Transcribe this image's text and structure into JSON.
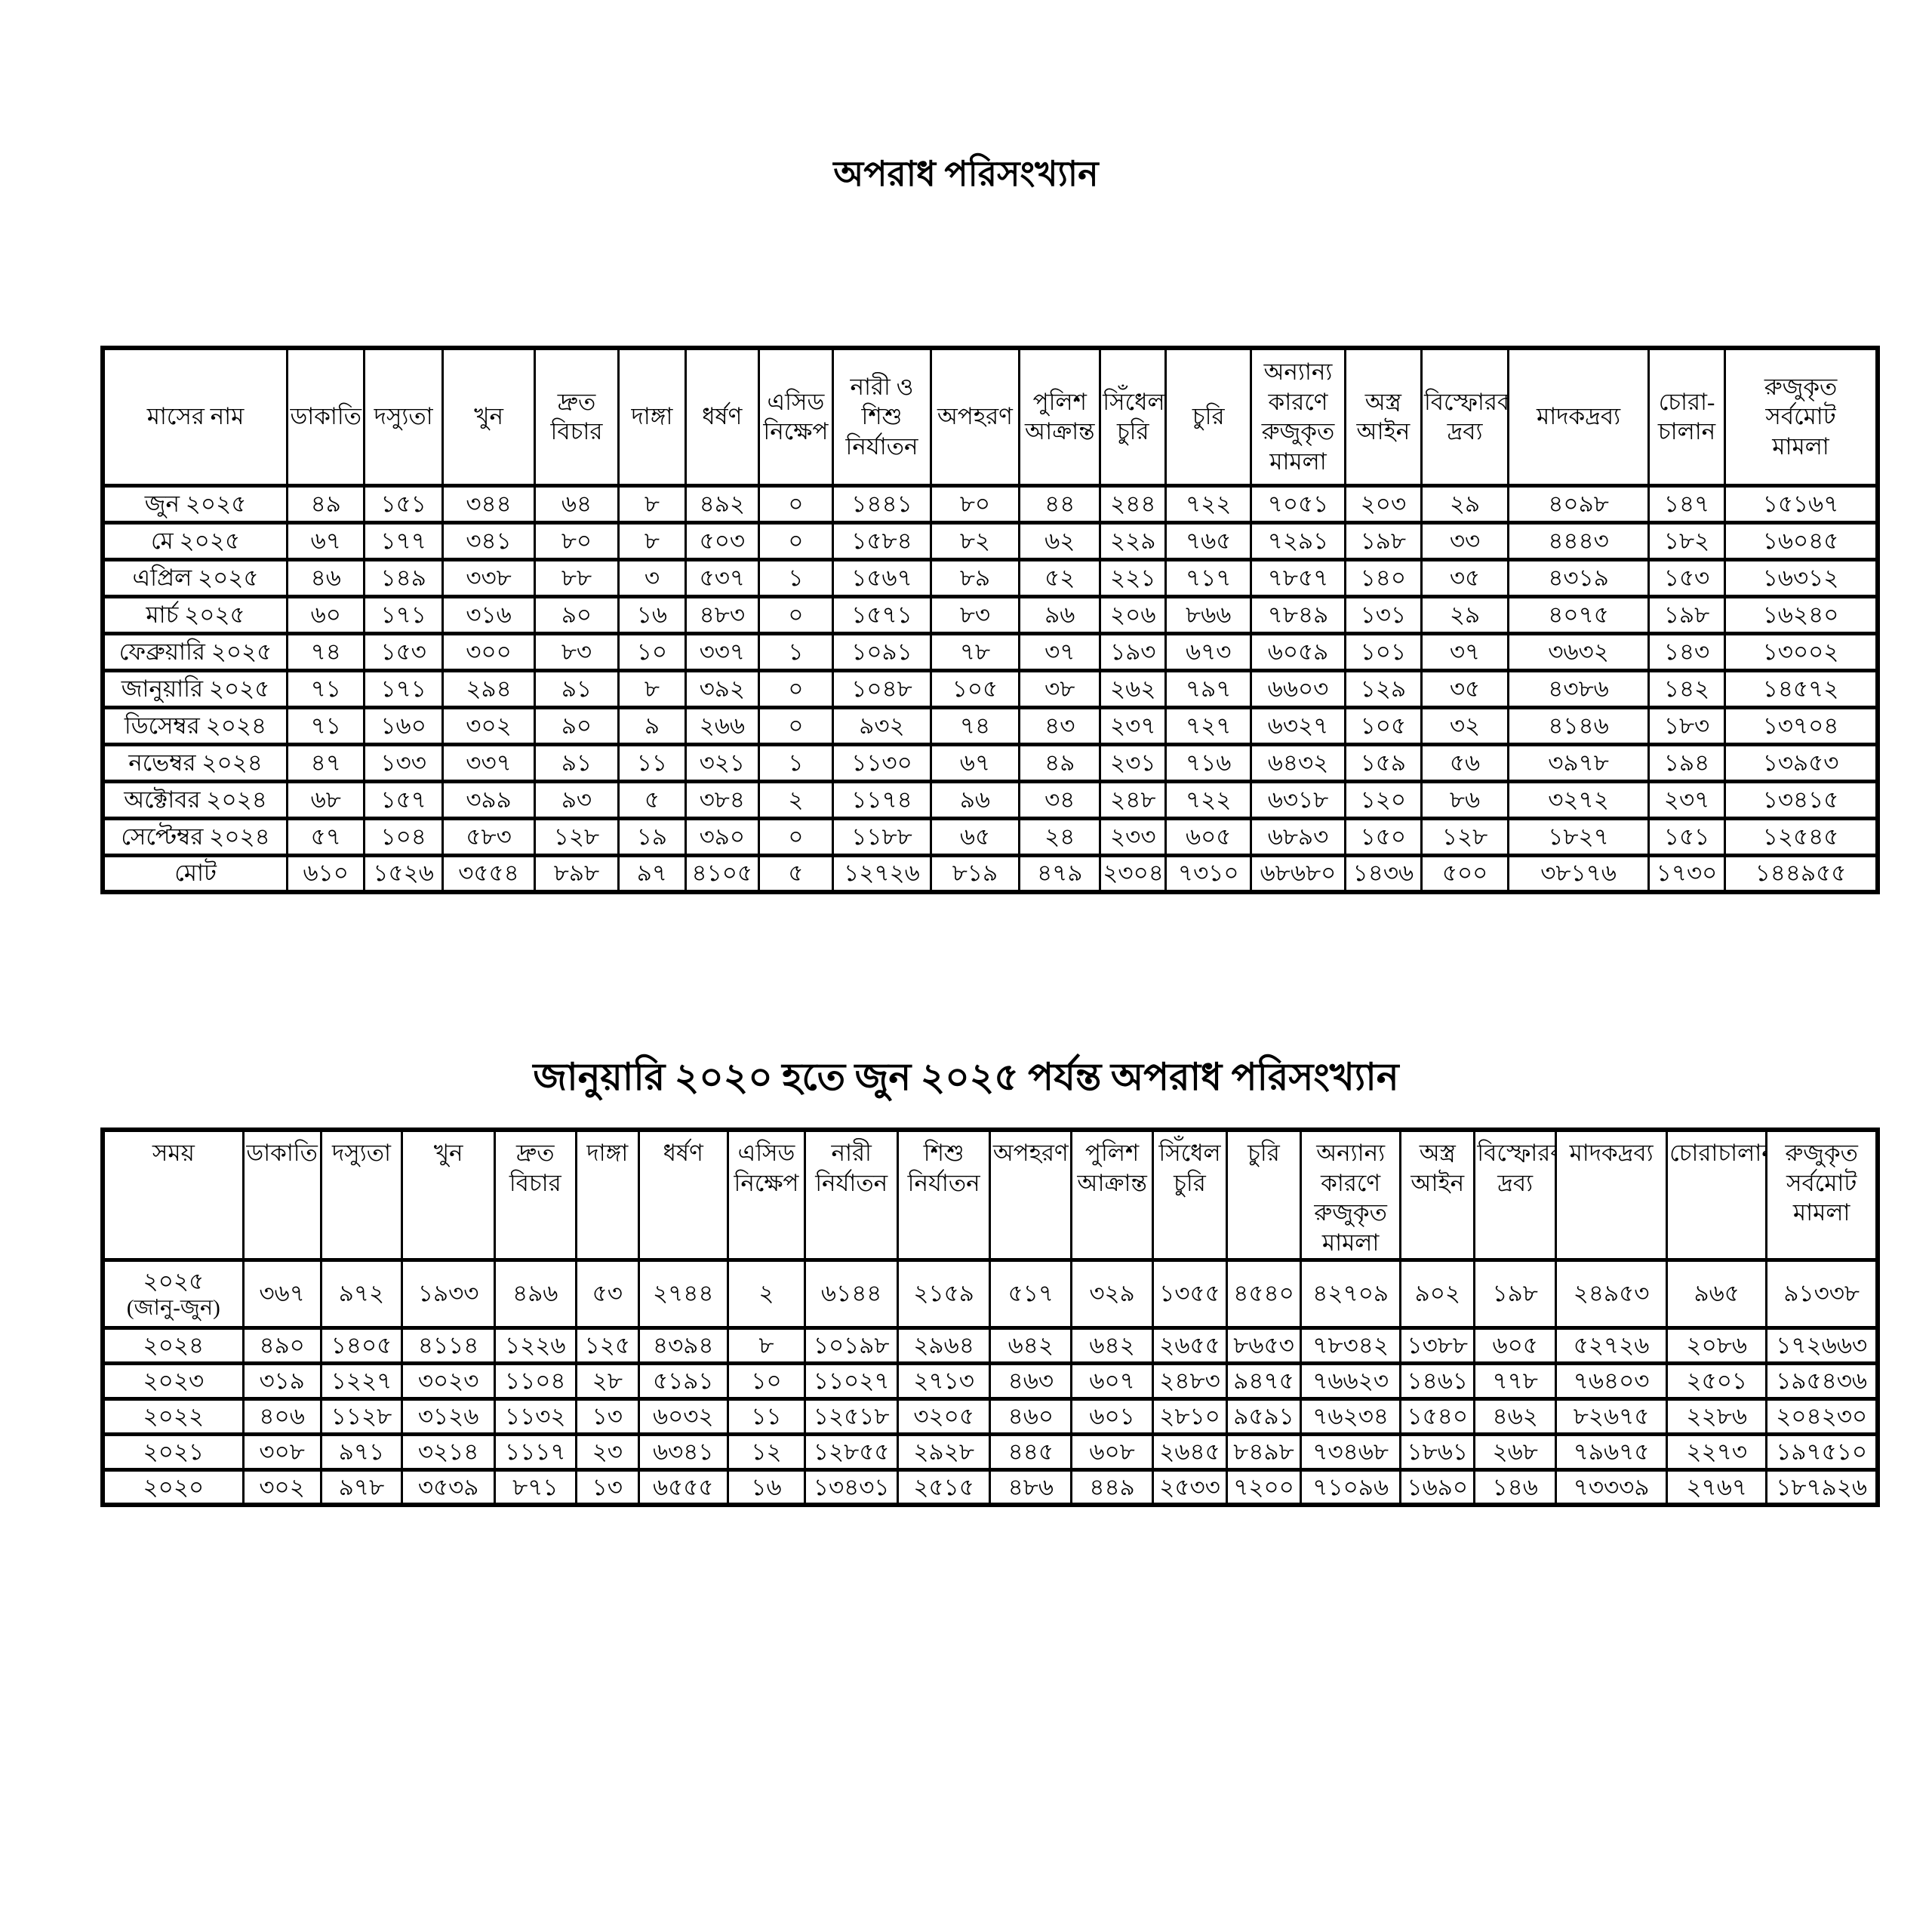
{
  "page": {
    "title_monthly": "অপরাধ পরিসংখ্যান",
    "title_yearly": "জানুয়ারি ২০২০ হতে জুন ২০২৫ পর্যন্ত অপরাধ পরিসংখ্যান"
  },
  "monthly_table": {
    "headers": [
      "মাসের নাম",
      "ডাকাতি",
      "দস্যুতা",
      "খুন",
      "দ্রুত\nবিচার",
      "দাঙ্গা",
      "ধর্ষণ",
      "এসিড\nনিক্ষেপ",
      "নারী ও\nশিশু\nনির্যাতন",
      "অপহরণ",
      "পুলিশ\nআক্রান্ত",
      "সিঁধেল\nচুরি",
      "চুরি",
      "অন্যান্য\nকারণে\nরুজুকৃত\nমামলা",
      "অস্ত্র\nআইন",
      "বিস্ফোরক\nদ্রব্য",
      "মাদকদ্রব্য",
      "চোরা-\nচালান",
      "রুজুকৃত\nসর্বমোট\nমামলা"
    ],
    "col_widths": [
      10.4,
      4.35,
      4.4,
      5.2,
      4.7,
      3.8,
      4.1,
      4.2,
      5.5,
      5.0,
      4.55,
      3.7,
      4.8,
      5.3,
      4.3,
      4.9,
      7.9,
      4.3,
      8.6
    ],
    "rows": [
      {
        "label": "জুন ২০২৫",
        "values": [
          "৪৯",
          "১৫১",
          "৩৪৪",
          "৬৪",
          "৮",
          "৪৯২",
          "০",
          "১৪৪১",
          "৮০",
          "৪৪",
          "২৪৪",
          "৭২২",
          "৭০৫১",
          "২০৩",
          "২৯",
          "৪০৯৮",
          "১৪৭",
          "১৫১৬৭"
        ]
      },
      {
        "label": "মে ২০২৫",
        "values": [
          "৬৭",
          "১৭৭",
          "৩৪১",
          "৮০",
          "৮",
          "৫০৩",
          "০",
          "১৫৮৪",
          "৮২",
          "৬২",
          "২২৯",
          "৭৬৫",
          "৭২৯১",
          "১৯৮",
          "৩৩",
          "৪৪৪৩",
          "১৮২",
          "১৬০৪৫"
        ]
      },
      {
        "label": "এপ্রিল ২০২৫",
        "values": [
          "৪৬",
          "১৪৯",
          "৩৩৮",
          "৮৮",
          "৩",
          "৫৩৭",
          "১",
          "১৫৬৭",
          "৮৯",
          "৫২",
          "২২১",
          "৭১৭",
          "৭৮৫৭",
          "১৪০",
          "৩৫",
          "৪৩১৯",
          "১৫৩",
          "১৬৩১২"
        ]
      },
      {
        "label": "মার্চ ২০২৫",
        "values": [
          "৬০",
          "১৭১",
          "৩১৬",
          "৯০",
          "১৬",
          "৪৮৩",
          "০",
          "১৫৭১",
          "৮৩",
          "৯৬",
          "২০৬",
          "৮৬৬",
          "৭৮৪৯",
          "১৩১",
          "২৯",
          "৪০৭৫",
          "১৯৮",
          "১৬২৪০"
        ]
      },
      {
        "label": "ফেব্রুয়ারি ২০২৫",
        "values": [
          "৭৪",
          "১৫৩",
          "৩০০",
          "৮৩",
          "১০",
          "৩৩৭",
          "১",
          "১০৯১",
          "৭৮",
          "৩৭",
          "১৯৩",
          "৬৭৩",
          "৬০৫৯",
          "১০১",
          "৩৭",
          "৩৬৩২",
          "১৪৩",
          "১৩০০২"
        ]
      },
      {
        "label": "জানুয়ারি ২০২৫",
        "values": [
          "৭১",
          "১৭১",
          "২৯৪",
          "৯১",
          "৮",
          "৩৯২",
          "০",
          "১০৪৮",
          "১০৫",
          "৩৮",
          "২৬২",
          "৭৯৭",
          "৬৬০৩",
          "১২৯",
          "৩৫",
          "৪৩৮৬",
          "১৪২",
          "১৪৫৭২"
        ]
      },
      {
        "label": "ডিসেম্বর ২০২৪",
        "values": [
          "৭১",
          "১৬০",
          "৩০২",
          "৯০",
          "৯",
          "২৬৬",
          "০",
          "৯৩২",
          "৭৪",
          "৪৩",
          "২৩৭",
          "৭২৭",
          "৬৩২৭",
          "১০৫",
          "৩২",
          "৪১৪৬",
          "১৮৩",
          "১৩৭০৪"
        ]
      },
      {
        "label": "নভেম্বর ২০২৪",
        "values": [
          "৪৭",
          "১৩৩",
          "৩৩৭",
          "৯১",
          "১১",
          "৩২১",
          "১",
          "১১৩০",
          "৬৭",
          "৪৯",
          "২৩১",
          "৭১৬",
          "৬৪৩২",
          "১৫৯",
          "৫৬",
          "৩৯৭৮",
          "১৯৪",
          "১৩৯৫৩"
        ]
      },
      {
        "label": "অক্টোবর ২০২৪",
        "values": [
          "৬৮",
          "১৫৭",
          "৩৯৯",
          "৯৩",
          "৫",
          "৩৮৪",
          "২",
          "১১৭৪",
          "৯৬",
          "৩৪",
          "২৪৮",
          "৭২২",
          "৬৩১৮",
          "১২০",
          "৮৬",
          "৩২৭২",
          "২৩৭",
          "১৩৪১৫"
        ]
      },
      {
        "label": "সেপ্টেম্বর ২০২৪",
        "values": [
          "৫৭",
          "১০৪",
          "৫৮৩",
          "১২৮",
          "১৯",
          "৩৯০",
          "০",
          "১১৮৮",
          "৬৫",
          "২৪",
          "২৩৩",
          "৬০৫",
          "৬৮৯৩",
          "১৫০",
          "১২৮",
          "১৮২৭",
          "১৫১",
          "১২৫৪৫"
        ]
      },
      {
        "label": "মোট",
        "values": [
          "৬১০",
          "১৫২৬",
          "৩৫৫৪",
          "৮৯৮",
          "৯৭",
          "৪১০৫",
          "৫",
          "১২৭২৬",
          "৮১৯",
          "৪৭৯",
          "২৩০৪",
          "৭৩১০",
          "৬৮৬৮০",
          "১৪৩৬",
          "৫০০",
          "৩৮১৭৬",
          "১৭৩০",
          "১৪৪৯৫৫"
        ]
      }
    ]
  },
  "yearly_table": {
    "headers": [
      "সময়",
      "ডাকাতি",
      "দস্যুতা",
      "খুন",
      "দ্রুত\nবিচার",
      "দাঙ্গা",
      "ধর্ষণ",
      "এসিড\nনিক্ষেপ",
      "নারী\nনির্যাতন",
      "শিশু\nনির্যাতন",
      "অপহরণ",
      "পুলিশ\nআক্রান্ত",
      "সিঁধেল\nচুরি",
      "চুরি",
      "অন্যান্য\nকারণে\nরুজুকৃত\nমামলা",
      "অস্ত্র\nআইন",
      "বিস্ফোরক\nদ্রব্য",
      "মাদকদ্রব্য",
      "চোরাচালান",
      "রুজুকৃত\nসর্বমোট\nমামলা"
    ],
    "col_widths": [
      7.6,
      4.2,
      4.4,
      5.0,
      4.4,
      3.4,
      4.8,
      4.2,
      5.0,
      5.0,
      4.4,
      4.4,
      4.0,
      4.0,
      5.4,
      4.0,
      4.4,
      6.0,
      5.4,
      6.0
    ],
    "rows": [
      {
        "label": "২০২৫",
        "sublabel": "(জানু-জুন)",
        "values": [
          "৩৬৭",
          "৯৭২",
          "১৯৩৩",
          "৪৯৬",
          "৫৩",
          "২৭৪৪",
          "২",
          "৬১৪৪",
          "২১৫৯",
          "৫১৭",
          "৩২৯",
          "১৩৫৫",
          "৪৫৪০",
          "৪২৭০৯",
          "৯০২",
          "১৯৮",
          "২৪৯৫৩",
          "৯৬৫",
          "৯১৩৩৮"
        ]
      },
      {
        "label": "২০২৪",
        "values": [
          "৪৯০",
          "১৪০৫",
          "৪১১৪",
          "১২২৬",
          "১২৫",
          "৪৩৯৪",
          "৮",
          "১০১৯৮",
          "২৯৬৪",
          "৬৪২",
          "৬৪২",
          "২৬৫৫",
          "৮৬৫৩",
          "৭৮৩৪২",
          "১৩৮৮",
          "৬০৫",
          "৫২৭২৬",
          "২০৮৬",
          "১৭২৬৬৩"
        ]
      },
      {
        "label": "২০২৩",
        "values": [
          "৩১৯",
          "১২২৭",
          "৩০২৩",
          "১১০৪",
          "২৮",
          "৫১৯১",
          "১০",
          "১১০২৭",
          "২৭১৩",
          "৪৬৩",
          "৬০৭",
          "২৪৮৩",
          "৯৪৭৫",
          "৭৬৬২৩",
          "১৪৬১",
          "৭৭৮",
          "৭৬৪০৩",
          "২৫০১",
          "১৯৫৪৩৬"
        ]
      },
      {
        "label": "২০২২",
        "values": [
          "৪০৬",
          "১১২৮",
          "৩১২৬",
          "১১৩২",
          "১৩",
          "৬০৩২",
          "১১",
          "১২৫১৮",
          "৩২০৫",
          "৪৬০",
          "৬০১",
          "২৮১০",
          "৯৫৯১",
          "৭৬২৩৪",
          "১৫৪০",
          "৪৬২",
          "৮২৬৭৫",
          "২২৮৬",
          "২০৪২৩০"
        ]
      },
      {
        "label": "২০২১",
        "values": [
          "৩০৮",
          "৯৭১",
          "৩২১৪",
          "১১১৭",
          "২৩",
          "৬৩৪১",
          "১২",
          "১২৮৫৫",
          "২৯২৮",
          "৪৪৫",
          "৬০৮",
          "২৬৪৫",
          "৮৪৯৮",
          "৭৩৪৬৮",
          "১৮৬১",
          "২৬৮",
          "৭৯৬৭৫",
          "২২৭৩",
          "১৯৭৫১০"
        ]
      },
      {
        "label": "২০২০",
        "values": [
          "৩০২",
          "৯৭৮",
          "৩৫৩৯",
          "৮৭১",
          "১৩",
          "৬৫৫৫",
          "১৬",
          "১৩৪৩১",
          "২৫১৫",
          "৪৮৬",
          "৪৪৯",
          "২৫৩৩",
          "৭২০০",
          "৭১০৯৬",
          "১৬৯০",
          "১৪৬",
          "৭৩৩৩৯",
          "২৭৬৭",
          "১৮৭৯২৬"
        ]
      }
    ]
  }
}
